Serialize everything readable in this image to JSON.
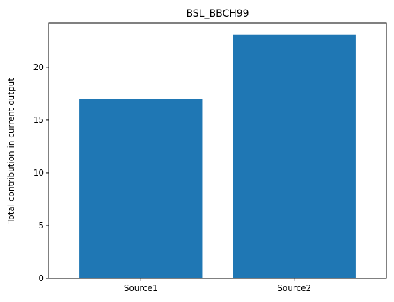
{
  "chart_data": {
    "type": "bar",
    "title": "BSL_BBCH99",
    "xlabel": "",
    "ylabel": "Total contribution in current output",
    "categories": [
      "Source1",
      "Source2"
    ],
    "values": [
      17.0,
      23.1
    ],
    "ylim": [
      0,
      24.2
    ],
    "yticks": [
      0,
      5,
      10,
      15,
      20
    ],
    "grid": false,
    "bar_color": "#1f77b4"
  }
}
